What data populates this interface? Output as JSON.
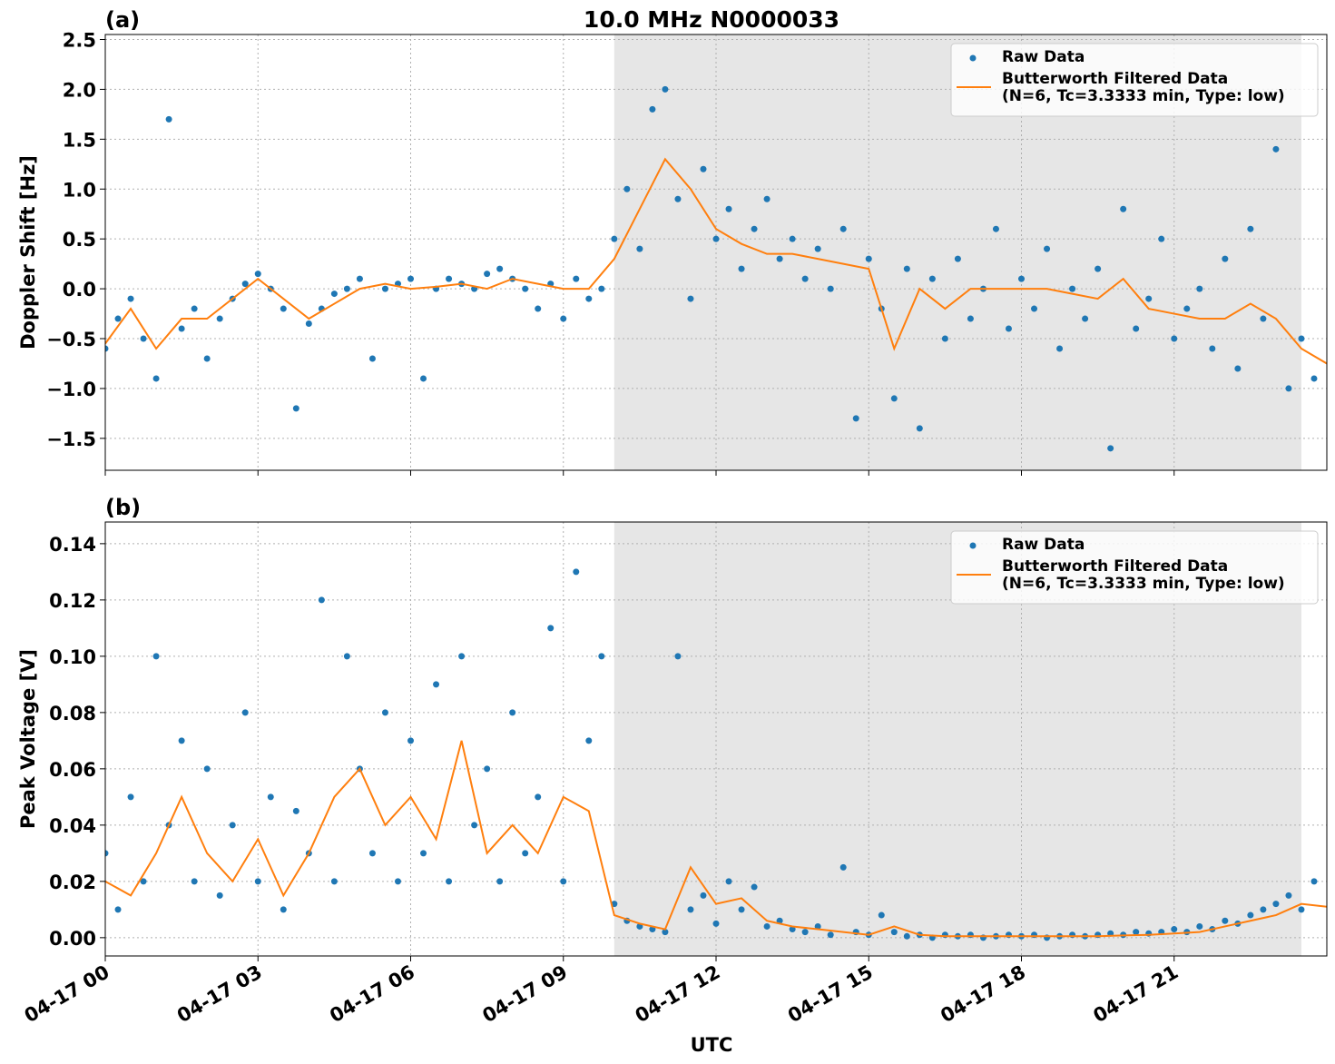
{
  "chart_data": [
    {
      "type": "line",
      "title": "10.0 MHz N0000033",
      "panel_label": "(a)",
      "ylabel": "Doppler Shift [Hz]",
      "xlim": [
        0,
        24
      ],
      "xticks": [
        0,
        3,
        6,
        9,
        12,
        15,
        18,
        21
      ],
      "ylim": [
        -1.82,
        2.55
      ],
      "yticks": [
        {
          "value": -1.5,
          "label": "−1.5"
        },
        {
          "value": -1.0,
          "label": "−1.0"
        },
        {
          "value": -0.5,
          "label": "−0.5"
        },
        {
          "value": 0,
          "label": "0.0"
        },
        {
          "value": 0.5,
          "label": "0.5"
        },
        {
          "value": 1.0,
          "label": "1.0"
        },
        {
          "value": 1.5,
          "label": "1.5"
        },
        {
          "value": 2.0,
          "label": "2.0"
        },
        {
          "value": 2.5,
          "label": "2.5"
        }
      ],
      "grid": true,
      "legend": "upper right",
      "shaded_span": [
        10,
        23.5
      ],
      "shade_color": "#e6e6e6",
      "series": [
        {
          "name": "Raw Data",
          "type": "scatter",
          "color": "#1f77b4",
          "x": [
            0,
            0.25,
            0.5,
            0.75,
            1,
            1.25,
            1.5,
            1.75,
            2,
            2.25,
            2.5,
            2.75,
            3,
            3.25,
            3.5,
            3.75,
            4,
            4.25,
            4.5,
            4.75,
            5,
            5.25,
            5.5,
            5.75,
            6,
            6.25,
            6.5,
            6.75,
            7,
            7.25,
            7.5,
            7.75,
            8,
            8.25,
            8.5,
            8.75,
            9,
            9.25,
            9.5,
            9.75,
            10,
            10.25,
            10.5,
            10.75,
            11,
            11.25,
            11.5,
            11.75,
            12,
            12.25,
            12.5,
            12.75,
            13,
            13.25,
            13.5,
            13.75,
            14,
            14.25,
            14.5,
            14.75,
            15,
            15.25,
            15.5,
            15.75,
            16,
            16.25,
            16.5,
            16.75,
            17,
            17.25,
            17.5,
            17.75,
            18,
            18.25,
            18.5,
            18.75,
            19,
            19.25,
            19.5,
            19.75,
            20,
            20.25,
            20.5,
            20.75,
            21,
            21.25,
            21.5,
            21.75,
            22,
            22.25,
            22.5,
            22.75,
            23,
            23.25,
            23.5,
            23.75
          ],
          "values": [
            -0.6,
            -0.3,
            -0.1,
            -0.5,
            -0.9,
            1.7,
            -0.4,
            -0.2,
            -0.7,
            -0.3,
            -0.1,
            0.05,
            0.15,
            0,
            -0.2,
            -1.2,
            -0.35,
            -0.2,
            -0.05,
            0,
            0.1,
            -0.7,
            0,
            0.05,
            0.1,
            -0.9,
            0,
            0.1,
            0.05,
            0,
            0.15,
            0.2,
            0.1,
            0,
            -0.2,
            0.05,
            -0.3,
            0.1,
            -0.1,
            0,
            0.5,
            1.0,
            0.4,
            1.8,
            2.0,
            0.9,
            -0.1,
            1.2,
            0.5,
            0.8,
            0.2,
            0.6,
            0.9,
            0.3,
            0.5,
            0.1,
            0.4,
            0,
            0.6,
            -1.3,
            0.3,
            -0.2,
            -1.1,
            0.2,
            -1.4,
            0.1,
            -0.5,
            0.3,
            -0.3,
            0,
            0.6,
            -0.4,
            0.1,
            -0.2,
            0.4,
            -0.6,
            0,
            -0.3,
            0.2,
            -1.6,
            0.8,
            -0.4,
            -0.1,
            0.5,
            -0.5,
            -0.2,
            0,
            -0.6,
            0.3,
            -0.8,
            0.6,
            -0.3,
            1.4,
            -1.0,
            -0.5,
            -0.9
          ]
        },
        {
          "name": "Butterworth Filtered Data\n(N=6, Tc=3.3333 min, Type: low)",
          "type": "line",
          "color": "#ff7f0e",
          "x": [
            0,
            0.5,
            1,
            1.5,
            2,
            2.5,
            3,
            3.5,
            4,
            4.5,
            5,
            5.5,
            6,
            6.5,
            7,
            7.5,
            8,
            8.5,
            9,
            9.5,
            10,
            10.5,
            11,
            11.5,
            12,
            12.5,
            13,
            13.5,
            14,
            14.5,
            15,
            15.5,
            16,
            16.5,
            17,
            17.5,
            18,
            18.5,
            19,
            19.5,
            20,
            20.5,
            21,
            21.5,
            22,
            22.5,
            23,
            23.5,
            24
          ],
          "values": [
            -0.55,
            -0.2,
            -0.6,
            -0.3,
            -0.3,
            -0.1,
            0.1,
            -0.1,
            -0.3,
            -0.15,
            0,
            0.05,
            0,
            0.02,
            0.05,
            0,
            0.1,
            0.05,
            0,
            0,
            0.3,
            0.8,
            1.3,
            1.0,
            0.6,
            0.45,
            0.35,
            0.35,
            0.3,
            0.25,
            0.2,
            -0.6,
            0,
            -0.2,
            0,
            0,
            0,
            0,
            -0.05,
            -0.1,
            0.1,
            -0.2,
            -0.25,
            -0.3,
            -0.3,
            -0.15,
            -0.3,
            -0.6,
            -0.75
          ]
        }
      ]
    },
    {
      "type": "line",
      "panel_label": "(b)",
      "ylabel": "Peak Voltage [V]",
      "xlabel": "UTC",
      "xlim": [
        0,
        24
      ],
      "xticks": [
        {
          "value": 0,
          "label": "04-17 00"
        },
        {
          "value": 3,
          "label": "04-17 03"
        },
        {
          "value": 6,
          "label": "04-17 06"
        },
        {
          "value": 9,
          "label": "04-17 09"
        },
        {
          "value": 12,
          "label": "04-17 12"
        },
        {
          "value": 15,
          "label": "04-17 15"
        },
        {
          "value": 18,
          "label": "04-17 18"
        },
        {
          "value": 21,
          "label": "04-17 21"
        }
      ],
      "ylim": [
        -0.0065,
        0.1477
      ],
      "yticks": [
        {
          "value": 0,
          "label": "0.00"
        },
        {
          "value": 0.02,
          "label": "0.02"
        },
        {
          "value": 0.04,
          "label": "0.04"
        },
        {
          "value": 0.06,
          "label": "0.06"
        },
        {
          "value": 0.08,
          "label": "0.08"
        },
        {
          "value": 0.1,
          "label": "0.10"
        },
        {
          "value": 0.12,
          "label": "0.12"
        },
        {
          "value": 0.14,
          "label": "0.14"
        }
      ],
      "grid": true,
      "legend": "upper right",
      "shaded_span": [
        10,
        23.5
      ],
      "shade_color": "#e6e6e6",
      "series": [
        {
          "name": "Raw Data",
          "type": "scatter",
          "color": "#1f77b4",
          "x": [
            0,
            0.25,
            0.5,
            0.75,
            1,
            1.25,
            1.5,
            1.75,
            2,
            2.25,
            2.5,
            2.75,
            3,
            3.25,
            3.5,
            3.75,
            4,
            4.25,
            4.5,
            4.75,
            5,
            5.25,
            5.5,
            5.75,
            6,
            6.25,
            6.5,
            6.75,
            7,
            7.25,
            7.5,
            7.75,
            8,
            8.25,
            8.5,
            8.75,
            9,
            9.25,
            9.5,
            9.75,
            10,
            10.25,
            10.5,
            10.75,
            11,
            11.25,
            11.5,
            11.75,
            12,
            12.25,
            12.5,
            12.75,
            13,
            13.25,
            13.5,
            13.75,
            14,
            14.25,
            14.5,
            14.75,
            15,
            15.25,
            15.5,
            15.75,
            16,
            16.25,
            16.5,
            16.75,
            17,
            17.25,
            17.5,
            17.75,
            18,
            18.25,
            18.5,
            18.75,
            19,
            19.25,
            19.5,
            19.75,
            20,
            20.25,
            20.5,
            20.75,
            21,
            21.25,
            21.5,
            21.75,
            22,
            22.25,
            22.5,
            22.75,
            23,
            23.25,
            23.5,
            23.75
          ],
          "values": [
            0.03,
            0.01,
            0.05,
            0.02,
            0.1,
            0.04,
            0.07,
            0.02,
            0.06,
            0.015,
            0.04,
            0.08,
            0.02,
            0.05,
            0.01,
            0.045,
            0.03,
            0.12,
            0.02,
            0.1,
            0.06,
            0.03,
            0.08,
            0.02,
            0.07,
            0.03,
            0.09,
            0.02,
            0.1,
            0.04,
            0.06,
            0.02,
            0.08,
            0.03,
            0.05,
            0.11,
            0.02,
            0.13,
            0.07,
            0.1,
            0.012,
            0.006,
            0.004,
            0.003,
            0.002,
            0.1,
            0.01,
            0.015,
            0.005,
            0.02,
            0.01,
            0.018,
            0.004,
            0.006,
            0.003,
            0.002,
            0.004,
            0.001,
            0.025,
            0.002,
            0.001,
            0.008,
            0.002,
            0.0005,
            0.001,
            0,
            0.001,
            0.0005,
            0.001,
            0,
            0.0005,
            0.001,
            0.0005,
            0.001,
            0,
            0.0005,
            0.001,
            0.0005,
            0.001,
            0.0015,
            0.001,
            0.002,
            0.0015,
            0.002,
            0.003,
            0.002,
            0.004,
            0.003,
            0.006,
            0.005,
            0.008,
            0.01,
            0.012,
            0.015,
            0.01,
            0.02
          ]
        },
        {
          "name": "Butterworth Filtered Data\n(N=6, Tc=3.3333 min, Type: low)",
          "type": "line",
          "color": "#ff7f0e",
          "x": [
            0,
            0.5,
            1,
            1.5,
            2,
            2.5,
            3,
            3.5,
            4,
            4.5,
            5,
            5.5,
            6,
            6.5,
            7,
            7.5,
            8,
            8.5,
            9,
            9.5,
            10,
            10.5,
            11,
            11.5,
            12,
            12.5,
            13,
            13.5,
            14,
            14.5,
            15,
            15.5,
            16,
            16.5,
            17,
            17.5,
            18,
            18.5,
            19,
            19.5,
            20,
            20.5,
            21,
            21.5,
            22,
            22.5,
            23,
            23.5,
            24
          ],
          "values": [
            0.02,
            0.015,
            0.03,
            0.05,
            0.03,
            0.02,
            0.035,
            0.015,
            0.03,
            0.05,
            0.06,
            0.04,
            0.05,
            0.035,
            0.07,
            0.03,
            0.04,
            0.03,
            0.05,
            0.045,
            0.008,
            0.005,
            0.003,
            0.025,
            0.012,
            0.014,
            0.006,
            0.004,
            0.003,
            0.002,
            0.001,
            0.004,
            0.001,
            0.0005,
            0.0005,
            0.0005,
            0.0005,
            0.0005,
            0.0005,
            0.0005,
            0.0008,
            0.001,
            0.0015,
            0.002,
            0.004,
            0.006,
            0.008,
            0.012,
            0.011
          ]
        }
      ]
    }
  ]
}
